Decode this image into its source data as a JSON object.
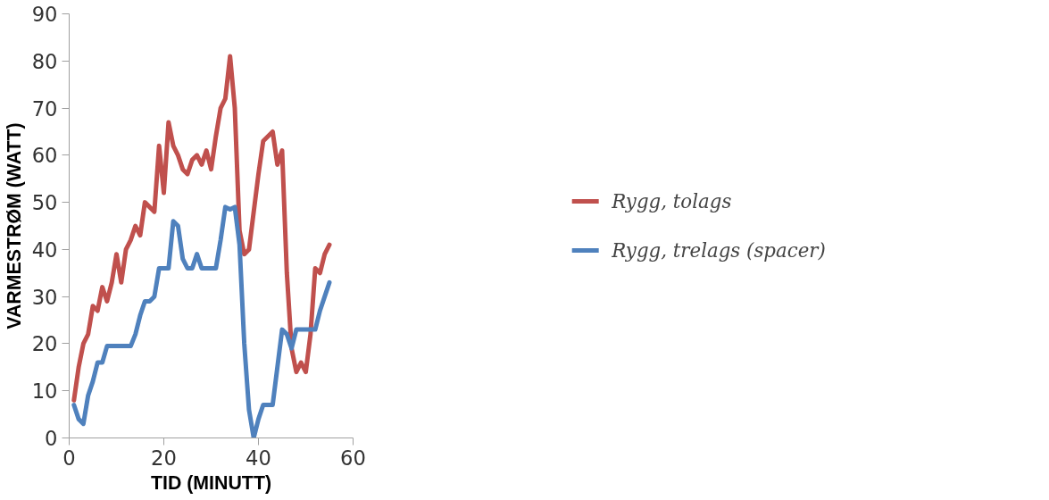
{
  "chart_data": {
    "type": "line",
    "xlabel": "TID (MINUTT)",
    "ylabel": "VARMESTRØM (WATT)",
    "x": [
      1,
      2,
      3,
      4,
      5,
      6,
      7,
      8,
      9,
      10,
      11,
      12,
      13,
      14,
      15,
      16,
      17,
      18,
      19,
      20,
      21,
      22,
      23,
      24,
      25,
      26,
      27,
      28,
      29,
      30,
      31,
      32,
      33,
      34,
      35,
      36,
      37,
      38,
      39,
      40,
      41,
      42,
      43,
      44,
      45,
      46,
      47,
      48,
      49,
      50,
      51,
      52,
      53,
      54,
      55
    ],
    "series": [
      {
        "name": "Rygg, tolags",
        "color": "#c0504d",
        "values": [
          8,
          15,
          20,
          22,
          28,
          27,
          32,
          29,
          33,
          39,
          33,
          40,
          42,
          45,
          43,
          50,
          49,
          48,
          62,
          52,
          67,
          62,
          60,
          57,
          56,
          59,
          60,
          58,
          61,
          57,
          64,
          70,
          72,
          81,
          70,
          44,
          39,
          40,
          48,
          56,
          63,
          64,
          65,
          58,
          61,
          35,
          19,
          14,
          16,
          14,
          22,
          36,
          35,
          39,
          41
        ]
      },
      {
        "name": "Rygg, trelags (spacer)",
        "color": "#4f81bd",
        "values": [
          7,
          4,
          3,
          9,
          12,
          16,
          16,
          19.5,
          19.5,
          19.5,
          19.5,
          19.5,
          19.5,
          22,
          26,
          29,
          29,
          30,
          36,
          36,
          36,
          46,
          45,
          38,
          36,
          36,
          39,
          36,
          36,
          36,
          36,
          42,
          49,
          48.5,
          49,
          41,
          20,
          6,
          0,
          4,
          7,
          7,
          7,
          15,
          23,
          22,
          19,
          23,
          23,
          23,
          23,
          23,
          27,
          30,
          33
        ]
      }
    ],
    "xlim": [
      0,
      60
    ],
    "xticks": [
      0,
      20,
      40,
      60
    ],
    "ylim": [
      0,
      90
    ],
    "yticks": [
      0,
      10,
      20,
      30,
      40,
      50,
      60,
      70,
      80,
      90
    ],
    "legend": "right",
    "marker": "none",
    "line_style": "solid"
  }
}
